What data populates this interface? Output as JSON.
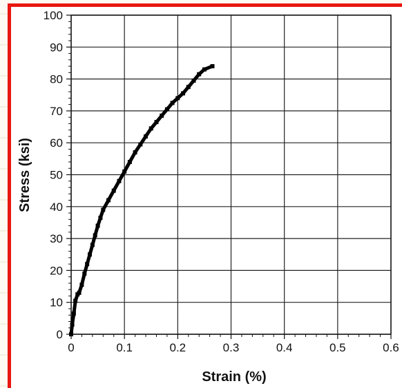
{
  "colors": {
    "frame_border": "#e8170f",
    "series": "#000000",
    "grid": "#222222",
    "page_background": "#fdfbf2"
  },
  "chart_data": {
    "type": "scatter",
    "title": "",
    "xlabel": "Strain (%)",
    "ylabel": "Stress (ksi)",
    "xlim": [
      0,
      0.6
    ],
    "ylim": [
      0,
      100
    ],
    "x_ticks": [
      "0",
      "0.1",
      "0.2",
      "0.3",
      "0.4",
      "0.5",
      "0.6"
    ],
    "y_ticks": [
      "0",
      "10",
      "20",
      "30",
      "40",
      "50",
      "60",
      "70",
      "80",
      "90",
      "100"
    ],
    "grid": true,
    "legend": "none",
    "series": [
      {
        "points": [
          [
            0.0,
            0.0
          ],
          [
            0.002,
            3.0
          ],
          [
            0.005,
            6.5
          ],
          [
            0.008,
            10.5
          ],
          [
            0.012,
            12.5
          ],
          [
            0.015,
            13.0
          ],
          [
            0.02,
            15.5
          ],
          [
            0.025,
            19.0
          ],
          [
            0.03,
            22.0
          ],
          [
            0.035,
            25.0
          ],
          [
            0.04,
            28.0
          ],
          [
            0.045,
            31.0
          ],
          [
            0.05,
            34.0
          ],
          [
            0.055,
            36.5
          ],
          [
            0.06,
            39.0
          ],
          [
            0.07,
            42.0
          ],
          [
            0.08,
            45.0
          ],
          [
            0.09,
            48.0
          ],
          [
            0.1,
            51.0
          ],
          [
            0.11,
            54.0
          ],
          [
            0.12,
            57.0
          ],
          [
            0.13,
            59.5
          ],
          [
            0.14,
            62.0
          ],
          [
            0.15,
            64.5
          ],
          [
            0.16,
            66.5
          ],
          [
            0.17,
            68.5
          ],
          [
            0.18,
            70.5
          ],
          [
            0.19,
            72.5
          ],
          [
            0.2,
            74.0
          ],
          [
            0.21,
            75.5
          ],
          [
            0.22,
            77.5
          ],
          [
            0.23,
            79.5
          ],
          [
            0.24,
            81.5
          ],
          [
            0.25,
            83.0
          ],
          [
            0.265,
            84.0
          ]
        ]
      }
    ]
  }
}
